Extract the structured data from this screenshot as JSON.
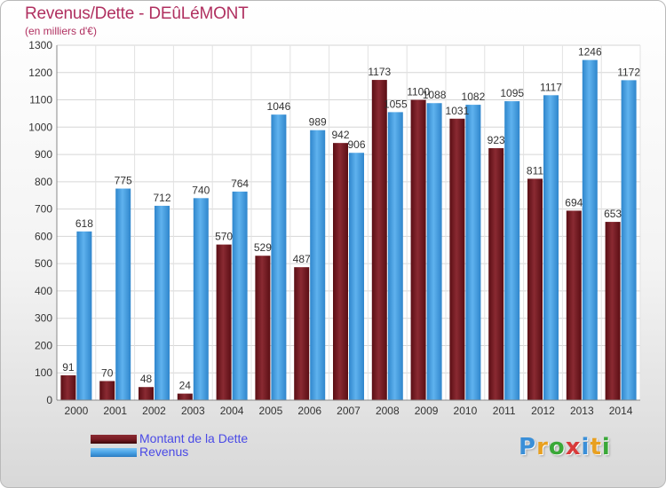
{
  "header": {
    "title": "Revenus/Dette - DEûLéMONT",
    "subtitle": "(en milliers d'€)"
  },
  "legend": {
    "items": [
      {
        "label": "Montant de la Dette",
        "color": "#7a1c24"
      },
      {
        "label": "Revenus",
        "color": "#4aa3e6"
      }
    ]
  },
  "logo": {
    "letters": [
      "P",
      "r",
      "o",
      "x",
      "i",
      "t",
      "i"
    ],
    "colors": [
      "#3a8fd8",
      "#e8a020",
      "#3aa838",
      "#d83a3a",
      "#3a8fd8",
      "#e8a020",
      "#3aa838"
    ]
  },
  "chart_data": {
    "type": "bar",
    "categories": [
      "2000",
      "2001",
      "2002",
      "2003",
      "2004",
      "2005",
      "2006",
      "2007",
      "2008",
      "2009",
      "2010",
      "2011",
      "2012",
      "2013",
      "2014"
    ],
    "series": [
      {
        "name": "Montant de la Dette",
        "values": [
          91,
          70,
          48,
          24,
          570,
          529,
          487,
          942,
          1173,
          1100,
          1031,
          923,
          811,
          694,
          653
        ]
      },
      {
        "name": "Revenus",
        "values": [
          618,
          775,
          712,
          740,
          764,
          1046,
          989,
          906,
          1055,
          1088,
          1082,
          1095,
          1117,
          1246,
          1172
        ]
      }
    ],
    "ylim": [
      0,
      1300
    ],
    "yticks": [
      0,
      100,
      200,
      300,
      400,
      500,
      600,
      700,
      800,
      900,
      1000,
      1100,
      1200,
      1300
    ],
    "grid": true,
    "legend_position": "bottom-left"
  }
}
